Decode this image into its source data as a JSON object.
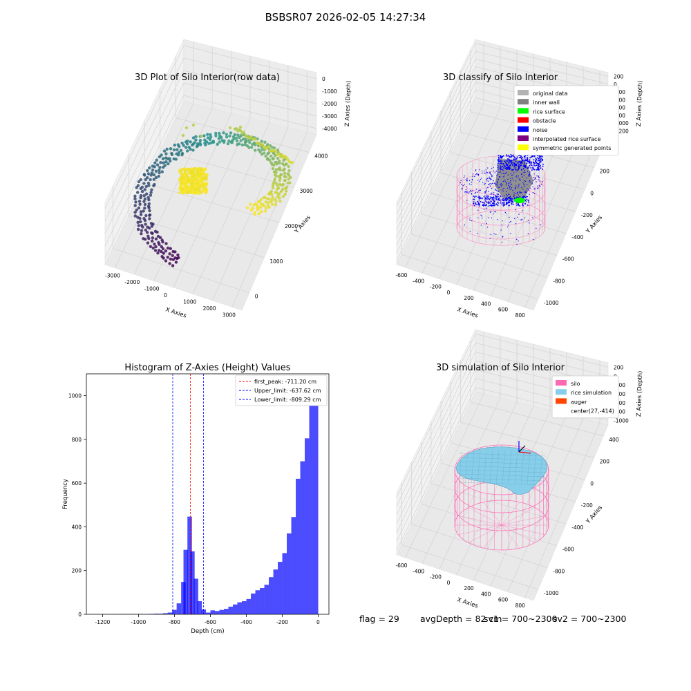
{
  "suptitle": "BSBSR07 2026-02-05 14:27:34",
  "status": {
    "flag": "flag = 29",
    "avg_depth": "avgDepth = 82 cm",
    "sv1": "sv1 = 700~2300",
    "sv2": "sv2 = 700~2300"
  },
  "colors": {
    "viridis_low": "#440154",
    "viridis_mid": "#21918c",
    "viridis_high": "#fde725",
    "inner_wall": "#808080",
    "original": "#b3b3b3",
    "rice_surface": "#00ff00",
    "obstacle": "#ff0000",
    "noise": "#0000ff",
    "interp": "#800080",
    "symmetric": "#ffff00",
    "silo_pink": "#ff69b4",
    "rice_sim": "#87ceeb",
    "auger": "#ff4500",
    "hist": "#0000ff"
  },
  "chart_data": [
    {
      "type": "scatter",
      "title": "3D Plot of Silo Interior(row data)",
      "xlabel": "X Axies",
      "ylabel": "Y Axies",
      "zlabel": "Z Axies (Depth)",
      "x_ticks": [
        "-3000",
        "-2000",
        "-1000",
        "0",
        "1000",
        "2000",
        "3000"
      ],
      "y_ticks": [
        "0",
        "1000",
        "2000",
        "3000",
        "4000"
      ],
      "z_ticks": [
        "0",
        "-1000",
        "-2000",
        "-3000",
        "-4000"
      ],
      "xlim": [
        -3300,
        3300
      ],
      "ylim": [
        -500,
        4700
      ],
      "zlim": [
        -4700,
        300
      ],
      "colormap": "viridis"
    },
    {
      "type": "scatter",
      "title": "3D classify of Silo Interior",
      "xlabel": "X Axies",
      "ylabel": "Y Axies",
      "zlabel": "Z Axies (Depth)",
      "x_ticks": [
        "-600",
        "-400",
        "-200",
        "0",
        "200",
        "400",
        "600",
        "800"
      ],
      "y_ticks": [
        "-1000",
        "-800",
        "-600",
        "-400",
        "-200",
        "0",
        "200",
        "400"
      ],
      "z_ticks": [
        "200",
        "0",
        "-200",
        "-400",
        "-600",
        "-800",
        "-1000",
        "-1200"
      ],
      "xlim": [
        -700,
        850
      ],
      "ylim": [
        -1100,
        450
      ],
      "zlim": [
        -1250,
        250
      ],
      "legend_position": "top-right",
      "legend": [
        {
          "name": "original data",
          "color": "#b3b3b3"
        },
        {
          "name": "inner wall",
          "color": "#808080"
        },
        {
          "name": "rice surface",
          "color": "#00ff00"
        },
        {
          "name": "obstacle",
          "color": "#ff0000"
        },
        {
          "name": "noise",
          "color": "#0000ff"
        },
        {
          "name": "interpolated rice surface",
          "color": "#800080"
        },
        {
          "name": "symmetric generated points",
          "color": "#ffff00"
        }
      ]
    },
    {
      "type": "bar",
      "title": "Histogram of Z-Axies (Height) Values",
      "xlabel": "Depth (cm)",
      "ylabel": "Frequency",
      "xlim": [
        -1290,
        60
      ],
      "ylim": [
        0,
        1100
      ],
      "x_ticks": [
        -1200,
        -1000,
        -800,
        -600,
        -400,
        -200,
        0
      ],
      "y_ticks": [
        0,
        200,
        400,
        600,
        800,
        1000
      ],
      "bin_width": 25,
      "bins": [
        {
          "x": -1100,
          "v": 1
        },
        {
          "x": -1075,
          "v": 1
        },
        {
          "x": -1050,
          "v": 1
        },
        {
          "x": -1025,
          "v": 1
        },
        {
          "x": -1000,
          "v": 1
        },
        {
          "x": -975,
          "v": 1
        },
        {
          "x": -950,
          "v": 1
        },
        {
          "x": -925,
          "v": 2
        },
        {
          "x": -900,
          "v": 3
        },
        {
          "x": -875,
          "v": 3
        },
        {
          "x": -850,
          "v": 5
        },
        {
          "x": -825,
          "v": 8
        },
        {
          "x": -800,
          "v": 20
        },
        {
          "x": -775,
          "v": 50
        },
        {
          "x": -750,
          "v": 148
        },
        {
          "x": -737,
          "v": 295
        },
        {
          "x": -715,
          "v": 447
        },
        {
          "x": -700,
          "v": 288
        },
        {
          "x": -680,
          "v": 163
        },
        {
          "x": -660,
          "v": 60
        },
        {
          "x": -637,
          "v": 22
        },
        {
          "x": -612,
          "v": 8
        },
        {
          "x": -587,
          "v": 18
        },
        {
          "x": -562,
          "v": 15
        },
        {
          "x": -537,
          "v": 20
        },
        {
          "x": -512,
          "v": 25
        },
        {
          "x": -487,
          "v": 35
        },
        {
          "x": -462,
          "v": 45
        },
        {
          "x": -437,
          "v": 55
        },
        {
          "x": -412,
          "v": 60
        },
        {
          "x": -387,
          "v": 70
        },
        {
          "x": -362,
          "v": 95
        },
        {
          "x": -337,
          "v": 110
        },
        {
          "x": -312,
          "v": 120
        },
        {
          "x": -287,
          "v": 135
        },
        {
          "x": -262,
          "v": 170
        },
        {
          "x": -237,
          "v": 205
        },
        {
          "x": -212,
          "v": 240
        },
        {
          "x": -187,
          "v": 280
        },
        {
          "x": -162,
          "v": 370
        },
        {
          "x": -137,
          "v": 445
        },
        {
          "x": -112,
          "v": 620
        },
        {
          "x": -87,
          "v": 700
        },
        {
          "x": -62,
          "v": 805
        },
        {
          "x": -37,
          "v": 1040
        },
        {
          "x": -12,
          "v": 1050
        }
      ],
      "vlines": [
        {
          "label": "first_peak: -711.20 cm",
          "x": -711.2,
          "color": "#ff0000"
        },
        {
          "label": "Upper_limit: -637.62 cm",
          "x": -637.62,
          "color": "#0000ff"
        },
        {
          "label": "Lower_limit: -809.29 cm",
          "x": -809.29,
          "color": "#0000ff"
        }
      ],
      "legend_position": "top-right"
    },
    {
      "type": "scatter",
      "title": "3D simulation of Silo Interior",
      "xlabel": "X Axies",
      "ylabel": "Y Axies",
      "zlabel": "Z Axies (Depth)",
      "x_ticks": [
        "-600",
        "-400",
        "-200",
        "0",
        "200",
        "400",
        "600",
        "800"
      ],
      "y_ticks": [
        "-1000",
        "-800",
        "-600",
        "-400",
        "-200",
        "0",
        "200",
        "400"
      ],
      "z_ticks": [
        "200",
        "0",
        "-200",
        "-400",
        "-600",
        "-800",
        "-1000"
      ],
      "xlim": [
        -700,
        850
      ],
      "ylim": [
        -1100,
        450
      ],
      "zlim": [
        -1100,
        300
      ],
      "legend_position": "top-right",
      "legend": [
        {
          "name": "silo",
          "color": "#ff69b4"
        },
        {
          "name": "rice simulation",
          "color": "#87ceeb"
        },
        {
          "name": "auger",
          "color": "#ff4500"
        },
        {
          "name": "center(27,-414)",
          "color": ""
        }
      ]
    }
  ]
}
